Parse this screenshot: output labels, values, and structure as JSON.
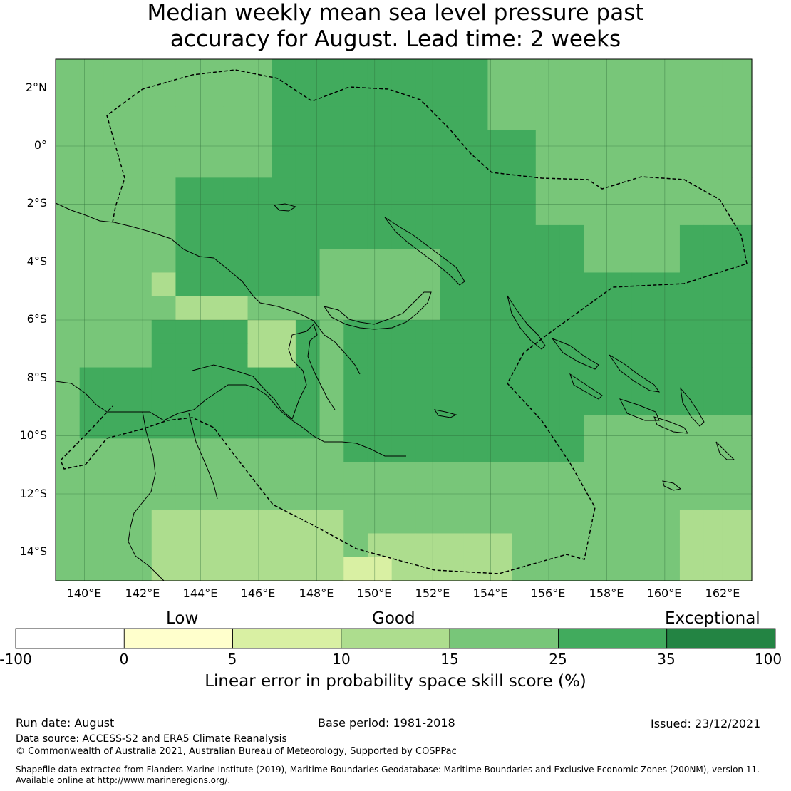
{
  "title": {
    "line1": "Median weekly mean sea level pressure past",
    "line2": "accuracy for August. Lead time: 2 weeks"
  },
  "map": {
    "lat_labels": [
      "2°N",
      "0°",
      "2°S",
      "4°S",
      "6°S",
      "8°S",
      "10°S",
      "12°S",
      "14°S"
    ],
    "lon_labels": [
      "140°E",
      "142°E",
      "144°E",
      "146°E",
      "148°E",
      "150°E",
      "152°E",
      "154°E",
      "156°E",
      "158°E",
      "160°E",
      "162°E"
    ],
    "extent": {
      "lon": [
        139,
        163
      ],
      "lat": [
        -15,
        3
      ]
    }
  },
  "colorbar": {
    "categories": [
      "Low",
      "Good",
      "Exceptional"
    ],
    "ticks": [
      "-100",
      "0",
      "5",
      "10",
      "15",
      "25",
      "35",
      "100"
    ],
    "colors": [
      "#ffffff",
      "#ffffcc",
      "#d9f0a3",
      "#addd8e",
      "#78c679",
      "#41ab5d",
      "#238443"
    ],
    "label": "Linear error in probability space skill score (%)"
  },
  "footer": {
    "run_date": "Run date: August",
    "base_period": "Base period: 1981-2018",
    "issued": "Issued: 23/12/2021",
    "data_source": "Data source: ACCESS-S2 and ERA5 Climate Reanalysis",
    "copyright": "© Commonwealth of Australia 2021, Australian Bureau of Meteorology, Supported by COSPPac",
    "shapefile_line1": "Shapefile data extracted from Flanders Marine Institute (2019), Maritime Boundaries Geodatabase: Maritime Boundaries and Exclusive Economic Zones (200NM), version 11.",
    "shapefile_line2": "Available online at http://www.marineregions.org/."
  }
}
